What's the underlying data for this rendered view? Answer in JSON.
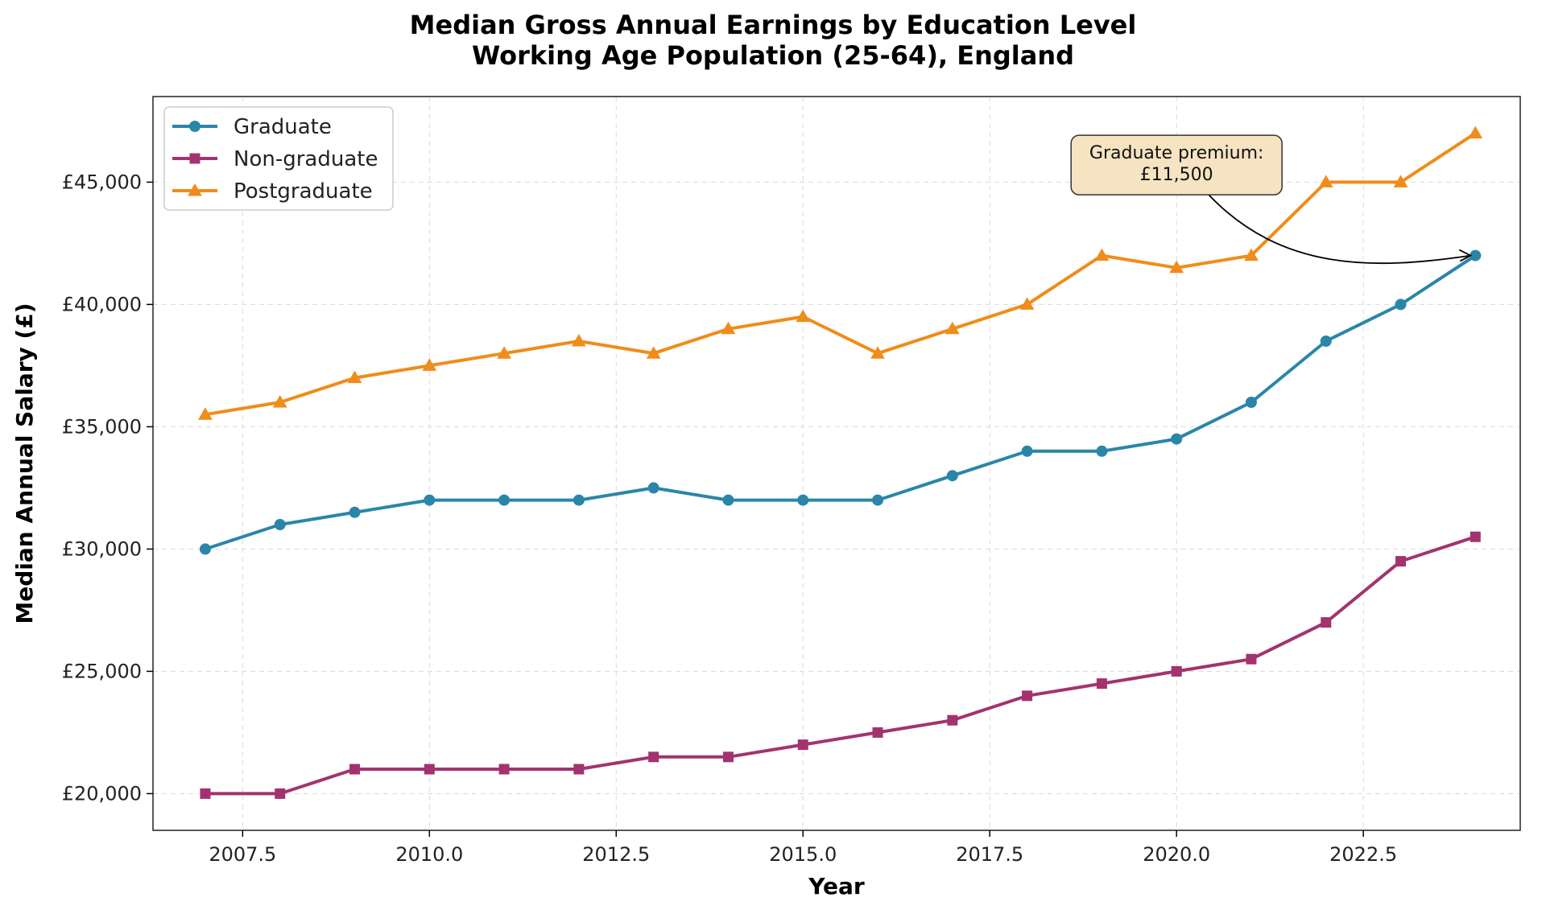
{
  "chart_data": {
    "type": "line",
    "title_line1": "Median Gross Annual Earnings by Education Level",
    "title_line2": "Working Age Population (25-64), England",
    "xlabel": "Year",
    "ylabel": "Median Annual Salary (£)",
    "xlim": [
      2006.3,
      2024.6
    ],
    "ylim": [
      18500,
      48500
    ],
    "x_ticks": [
      2007.5,
      2010.0,
      2012.5,
      2015.0,
      2017.5,
      2020.0,
      2022.5
    ],
    "x_tick_labels": [
      "2007.5",
      "2010.0",
      "2012.5",
      "2015.0",
      "2017.5",
      "2020.0",
      "2022.5"
    ],
    "y_ticks": [
      20000,
      25000,
      30000,
      35000,
      40000,
      45000
    ],
    "y_tick_labels": [
      "£20,000",
      "£25,000",
      "£30,000",
      "£35,000",
      "£40,000",
      "£45,000"
    ],
    "grid": true,
    "legend_position": "top-left",
    "x": [
      2007,
      2008,
      2009,
      2010,
      2011,
      2012,
      2013,
      2014,
      2015,
      2016,
      2017,
      2018,
      2019,
      2020,
      2021,
      2022,
      2023,
      2024
    ],
    "series": [
      {
        "name": "Graduate",
        "color": "#2a86a8",
        "marker": "circle",
        "values": [
          30000,
          31000,
          31500,
          32000,
          32000,
          32000,
          32500,
          32000,
          32000,
          32000,
          33000,
          34000,
          34000,
          34500,
          36000,
          38500,
          40000,
          42000
        ]
      },
      {
        "name": "Non-graduate",
        "color": "#a3336e",
        "marker": "square",
        "values": [
          20000,
          20000,
          21000,
          21000,
          21000,
          21000,
          21500,
          21500,
          22000,
          22500,
          23000,
          24000,
          24500,
          25000,
          25500,
          27000,
          29500,
          30500
        ]
      },
      {
        "name": "Postgraduate",
        "color": "#f08c1a",
        "marker": "triangle",
        "values": [
          35500,
          36000,
          37000,
          37500,
          38000,
          38500,
          38000,
          39000,
          39500,
          38000,
          39000,
          40000,
          42000,
          41500,
          42000,
          45000,
          45000,
          47000
        ]
      }
    ],
    "annotation": {
      "line1": "Graduate premium:",
      "line2": "£11,500",
      "box_color": "#f6e3c2",
      "box_x": 2020.0,
      "box_y": 45700,
      "target_x": 2024,
      "target_y": 42000
    }
  }
}
